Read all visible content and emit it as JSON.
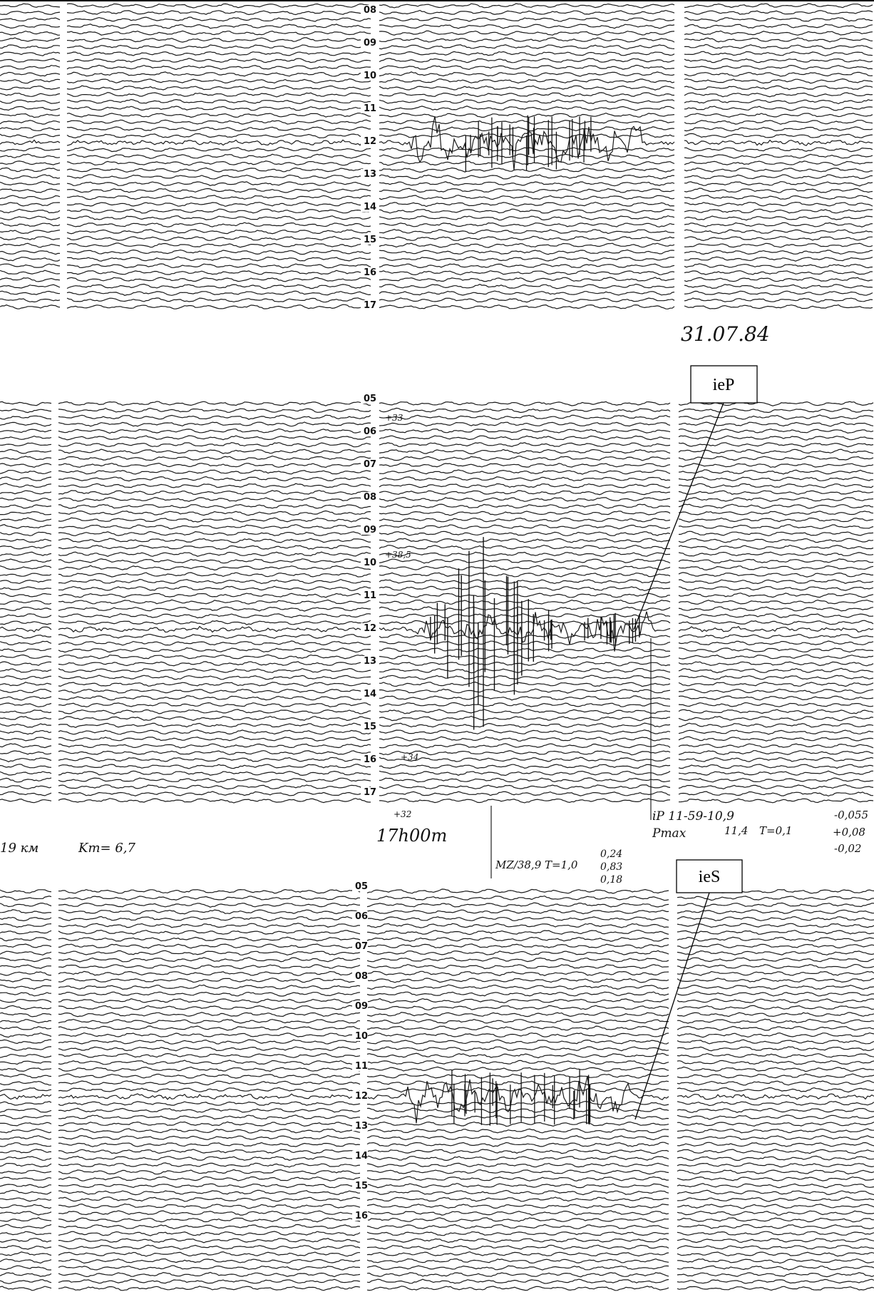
{
  "date": "31.07.84",
  "panels": [
    {
      "hours": [
        "08",
        "09",
        "10",
        "11",
        "12",
        "13",
        "14",
        "15",
        "16",
        "17"
      ]
    },
    {
      "hours": [
        "05",
        "06",
        "07",
        "08",
        "09",
        "10",
        "11",
        "12",
        "13",
        "14",
        "15",
        "16",
        "17"
      ]
    },
    {
      "hours": [
        "05",
        "06",
        "07",
        "08",
        "09",
        "10",
        "11",
        "12",
        "13",
        "14",
        "15",
        "16"
      ]
    }
  ],
  "annotations": [
    {
      "label": "ieP"
    },
    {
      "label": "ieS"
    }
  ],
  "marks": [
    "+33",
    "+38,5",
    "+34",
    "+32"
  ],
  "time": "17h00m",
  "notes": {
    "magnitude": "Km= 6,7",
    "distance": "19 км",
    "phase": "iP 11-59-10,9",
    "pmax": "Pmax",
    "pmax_time": "11,4",
    "period": "T=0,1",
    "amp1": "-0,055",
    "amp2": "+0,08",
    "amp3": "-0,02",
    "mz": "MZ/38,9 T=1,0",
    "mz1": "0,24",
    "mz2": "0,83",
    "mz3": "0,18"
  }
}
